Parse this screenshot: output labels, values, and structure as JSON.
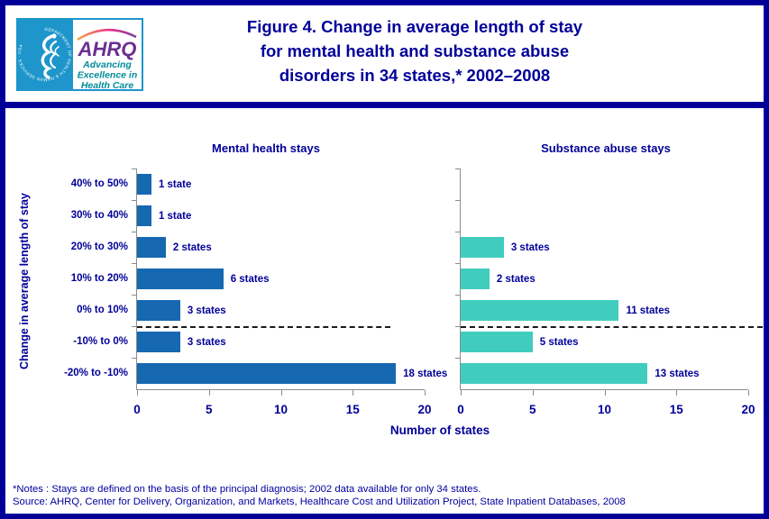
{
  "header": {
    "logo": {
      "seal_text": "DEPARTMENT OF HEALTH & HUMAN SERVICES · USA",
      "ahrq_text": "AHRQ",
      "tagline_lines": [
        "Advancing",
        "Excellence in",
        "Health Care"
      ]
    },
    "title_lines": [
      "Figure 4. Change in average length of stay",
      "for mental health and substance abuse",
      "disorders in 34 states,* 2002–2008"
    ]
  },
  "chart_data": {
    "type": "bar",
    "orientation": "horizontal",
    "categories": [
      "40% to 50%",
      "30% to 40%",
      "20% to 30%",
      "10% to 20%",
      "0% to 10%",
      "-10% to 0%",
      "-20% to -10%"
    ],
    "series": [
      {
        "name": "Mental health stays",
        "color": "#1668B1",
        "values": [
          1,
          1,
          2,
          6,
          3,
          3,
          18
        ],
        "labels": [
          "1 state",
          "1 state",
          "2 states",
          "6 states",
          "3 states",
          "3 states",
          "18 states"
        ],
        "dash_width_pct": 88
      },
      {
        "name": "Substance abuse stays",
        "color": "#40CDBE",
        "values": [
          0,
          0,
          3,
          2,
          11,
          5,
          13
        ],
        "labels": [
          "",
          "",
          "3 states",
          "2 states",
          "11 states",
          "5 states",
          "13 states"
        ],
        "dash_width_pct": 105
      }
    ],
    "xlabel": "Number of states",
    "ylabel": "Change in average length of stay",
    "xlim": [
      0,
      20
    ],
    "xticks": [
      0,
      5,
      10,
      15,
      20
    ],
    "dashed_line_after_category_index": 4,
    "grid": false,
    "legend_position": "none"
  },
  "footer": {
    "notes": "*Notes : Stays are defined on the basis of the principal diagnosis; 2002 data available for only 34 states.",
    "source": "Source:  AHRQ, Center for Delivery, Organization, and Markets, Healthcare Cost and Utilization Project, State Inpatient Databases, 2008"
  },
  "colors": {
    "navy": "#000099",
    "footer_text": "#0000A0",
    "axis_gray": "#8c8c8c",
    "logo_blue": "#1E95CB",
    "ahrq_purple": "#6B2E91",
    "tagline_teal": "#008C99"
  }
}
